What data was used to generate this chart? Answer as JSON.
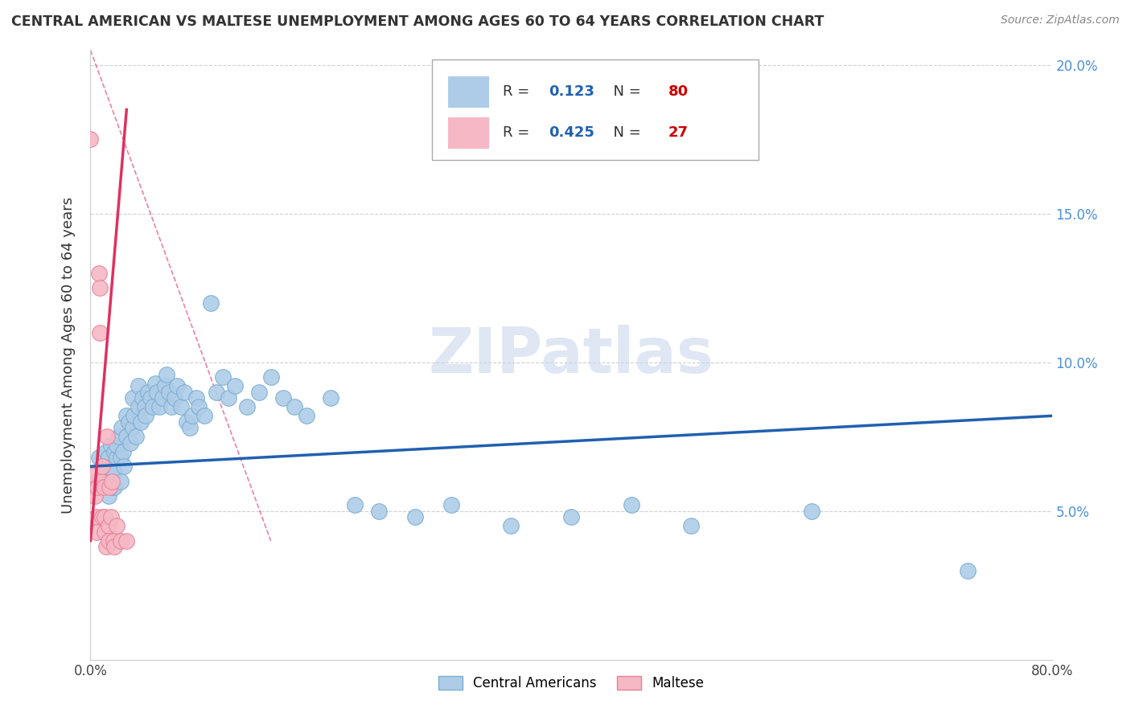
{
  "title": "CENTRAL AMERICAN VS MALTESE UNEMPLOYMENT AMONG AGES 60 TO 64 YEARS CORRELATION CHART",
  "source": "Source: ZipAtlas.com",
  "ylabel": "Unemployment Among Ages 60 to 64 years",
  "xlim": [
    0.0,
    0.8
  ],
  "ylim": [
    0.0,
    0.205
  ],
  "xticks": [
    0.0,
    0.1,
    0.2,
    0.3,
    0.4,
    0.5,
    0.6,
    0.7,
    0.8
  ],
  "xticklabels": [
    "0.0%",
    "",
    "",
    "",
    "",
    "",
    "",
    "",
    "80.0%"
  ],
  "yticks": [
    0.05,
    0.1,
    0.15,
    0.2
  ],
  "yticklabels": [
    "5.0%",
    "10.0%",
    "15.0%",
    "20.0%"
  ],
  "blue_color": "#aecce8",
  "blue_edge_color": "#7aaed0",
  "pink_color": "#f5b8c4",
  "pink_edge_color": "#e88098",
  "trend_blue": "#2060b0",
  "trend_pink": "#e03060",
  "R_blue": 0.123,
  "N_blue": 80,
  "R_pink": 0.425,
  "N_pink": 27,
  "blue_x": [
    0.005,
    0.007,
    0.01,
    0.01,
    0.012,
    0.013,
    0.015,
    0.015,
    0.016,
    0.017,
    0.018,
    0.018,
    0.02,
    0.02,
    0.02,
    0.022,
    0.022,
    0.024,
    0.025,
    0.025,
    0.026,
    0.027,
    0.028,
    0.03,
    0.03,
    0.032,
    0.033,
    0.035,
    0.035,
    0.036,
    0.038,
    0.04,
    0.04,
    0.042,
    0.043,
    0.045,
    0.046,
    0.048,
    0.05,
    0.052,
    0.054,
    0.055,
    0.057,
    0.06,
    0.062,
    0.063,
    0.065,
    0.067,
    0.07,
    0.072,
    0.075,
    0.078,
    0.08,
    0.083,
    0.085,
    0.088,
    0.09,
    0.095,
    0.1,
    0.105,
    0.11,
    0.115,
    0.12,
    0.13,
    0.14,
    0.15,
    0.16,
    0.17,
    0.18,
    0.2,
    0.22,
    0.24,
    0.27,
    0.3,
    0.35,
    0.4,
    0.45,
    0.5,
    0.6,
    0.73
  ],
  "blue_y": [
    0.06,
    0.068,
    0.058,
    0.065,
    0.062,
    0.07,
    0.055,
    0.068,
    0.06,
    0.072,
    0.058,
    0.065,
    0.063,
    0.07,
    0.058,
    0.068,
    0.072,
    0.075,
    0.068,
    0.06,
    0.078,
    0.07,
    0.065,
    0.082,
    0.075,
    0.08,
    0.073,
    0.088,
    0.078,
    0.082,
    0.075,
    0.085,
    0.092,
    0.08,
    0.088,
    0.085,
    0.082,
    0.09,
    0.088,
    0.085,
    0.093,
    0.09,
    0.085,
    0.088,
    0.092,
    0.096,
    0.09,
    0.085,
    0.088,
    0.092,
    0.085,
    0.09,
    0.08,
    0.078,
    0.082,
    0.088,
    0.085,
    0.082,
    0.12,
    0.09,
    0.095,
    0.088,
    0.092,
    0.085,
    0.09,
    0.095,
    0.088,
    0.085,
    0.082,
    0.088,
    0.052,
    0.05,
    0.048,
    0.052,
    0.045,
    0.048,
    0.052,
    0.045,
    0.05,
    0.03
  ],
  "pink_x": [
    0.0,
    0.003,
    0.004,
    0.005,
    0.005,
    0.006,
    0.007,
    0.008,
    0.008,
    0.009,
    0.01,
    0.01,
    0.011,
    0.012,
    0.012,
    0.013,
    0.014,
    0.015,
    0.015,
    0.016,
    0.017,
    0.018,
    0.019,
    0.02,
    0.022,
    0.025,
    0.03
  ],
  "pink_y": [
    0.175,
    0.062,
    0.055,
    0.048,
    0.043,
    0.058,
    0.13,
    0.125,
    0.11,
    0.06,
    0.048,
    0.065,
    0.058,
    0.048,
    0.043,
    0.038,
    0.075,
    0.045,
    0.04,
    0.058,
    0.048,
    0.06,
    0.04,
    0.038,
    0.045,
    0.04,
    0.04
  ],
  "watermark": "ZIPatlas",
  "watermark_color": "#c8d8ec"
}
